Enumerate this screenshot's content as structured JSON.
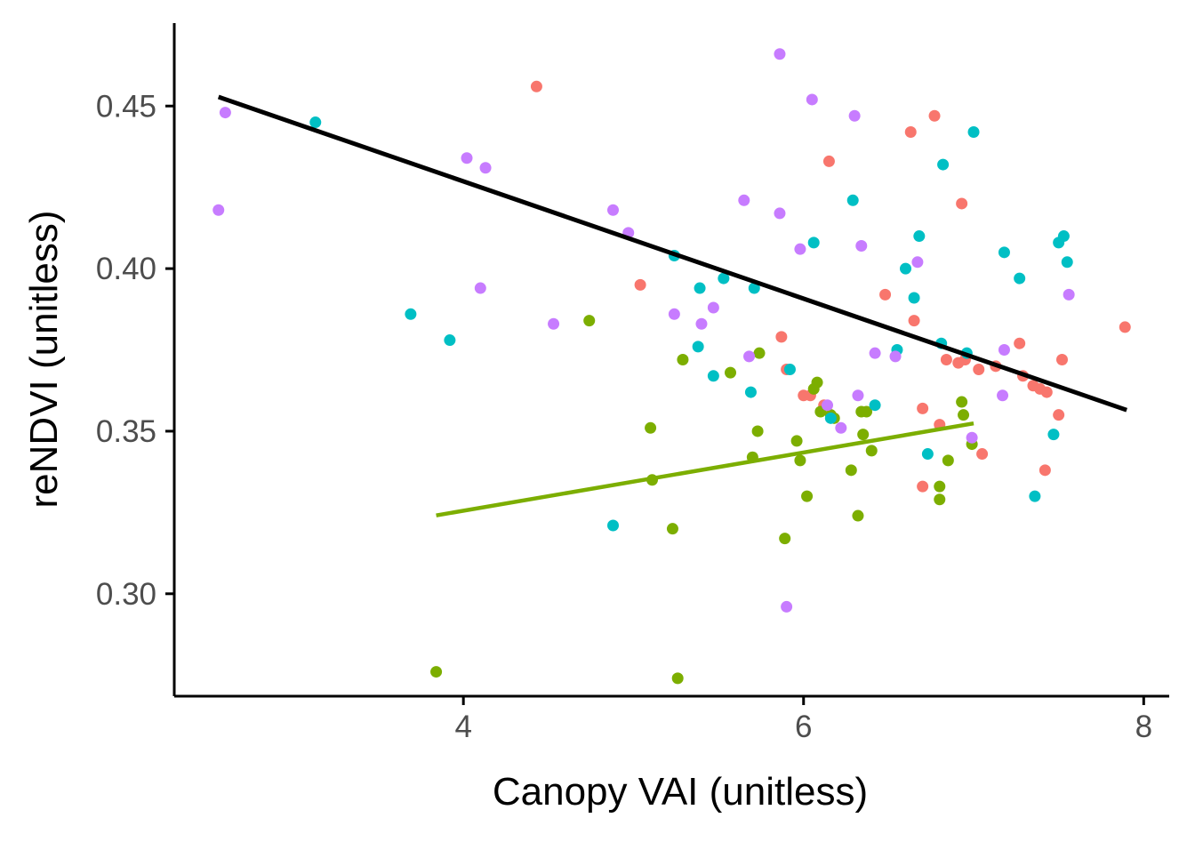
{
  "chart_data": {
    "type": "scatter",
    "title": "",
    "xlabel": "Canopy VAI (unitless)",
    "ylabel": "reNDVI (unitless)",
    "xlim": [
      2.3,
      8.15
    ],
    "ylim": [
      0.2685,
      0.4755
    ],
    "x_ticks": [
      4,
      6,
      8
    ],
    "x_tick_labels": [
      "4",
      "6",
      "8"
    ],
    "y_ticks": [
      0.3,
      0.35,
      0.4,
      0.45
    ],
    "y_tick_labels": [
      "0.30",
      "0.35",
      "0.40",
      "0.45"
    ],
    "grid": false,
    "legend": "none",
    "series": [
      {
        "color": "#F8766D",
        "points": [
          [
            4.43,
            0.456
          ],
          [
            5.04,
            0.395
          ],
          [
            5.87,
            0.379
          ],
          [
            5.9,
            0.369
          ],
          [
            6.0,
            0.361
          ],
          [
            6.04,
            0.361
          ],
          [
            6.12,
            0.358
          ],
          [
            6.15,
            0.433
          ],
          [
            6.48,
            0.392
          ],
          [
            6.63,
            0.442
          ],
          [
            6.65,
            0.384
          ],
          [
            6.7,
            0.357
          ],
          [
            6.7,
            0.333
          ],
          [
            6.77,
            0.447
          ],
          [
            6.8,
            0.352
          ],
          [
            6.84,
            0.372
          ],
          [
            6.91,
            0.371
          ],
          [
            6.93,
            0.42
          ],
          [
            6.95,
            0.372
          ],
          [
            7.03,
            0.369
          ],
          [
            7.05,
            0.343
          ],
          [
            7.13,
            0.37
          ],
          [
            7.27,
            0.377
          ],
          [
            7.29,
            0.367
          ],
          [
            7.35,
            0.364
          ],
          [
            7.39,
            0.363
          ],
          [
            7.42,
            0.338
          ],
          [
            7.43,
            0.362
          ],
          [
            7.5,
            0.355
          ],
          [
            7.52,
            0.372
          ],
          [
            7.89,
            0.382
          ]
        ]
      },
      {
        "color": "#7CAE00",
        "points": [
          [
            3.84,
            0.276
          ],
          [
            4.74,
            0.384
          ],
          [
            5.1,
            0.351
          ],
          [
            5.11,
            0.335
          ],
          [
            5.23,
            0.32
          ],
          [
            5.26,
            0.274
          ],
          [
            5.29,
            0.372
          ],
          [
            5.57,
            0.368
          ],
          [
            5.7,
            0.342
          ],
          [
            5.73,
            0.35
          ],
          [
            5.74,
            0.374
          ],
          [
            5.89,
            0.317
          ],
          [
            5.96,
            0.347
          ],
          [
            5.98,
            0.341
          ],
          [
            6.02,
            0.33
          ],
          [
            6.06,
            0.363
          ],
          [
            6.08,
            0.365
          ],
          [
            6.1,
            0.356
          ],
          [
            6.16,
            0.355
          ],
          [
            6.18,
            0.354
          ],
          [
            6.28,
            0.338
          ],
          [
            6.32,
            0.324
          ],
          [
            6.34,
            0.356
          ],
          [
            6.35,
            0.349
          ],
          [
            6.37,
            0.356
          ],
          [
            6.4,
            0.344
          ],
          [
            6.8,
            0.333
          ],
          [
            6.8,
            0.329
          ],
          [
            6.85,
            0.341
          ],
          [
            6.93,
            0.359
          ],
          [
            6.94,
            0.355
          ],
          [
            6.99,
            0.346
          ]
        ]
      },
      {
        "color": "#00BFC4",
        "points": [
          [
            3.13,
            0.445
          ],
          [
            3.69,
            0.386
          ],
          [
            3.92,
            0.378
          ],
          [
            4.88,
            0.321
          ],
          [
            5.24,
            0.404
          ],
          [
            5.38,
            0.376
          ],
          [
            5.39,
            0.394
          ],
          [
            5.47,
            0.367
          ],
          [
            5.53,
            0.397
          ],
          [
            5.69,
            0.362
          ],
          [
            5.71,
            0.394
          ],
          [
            5.92,
            0.369
          ],
          [
            6.06,
            0.408
          ],
          [
            6.16,
            0.354
          ],
          [
            6.29,
            0.421
          ],
          [
            6.42,
            0.358
          ],
          [
            6.55,
            0.375
          ],
          [
            6.6,
            0.4
          ],
          [
            6.65,
            0.391
          ],
          [
            6.68,
            0.41
          ],
          [
            6.73,
            0.343
          ],
          [
            6.81,
            0.377
          ],
          [
            6.82,
            0.432
          ],
          [
            6.96,
            0.374
          ],
          [
            7.0,
            0.442
          ],
          [
            7.18,
            0.405
          ],
          [
            7.27,
            0.397
          ],
          [
            7.36,
            0.33
          ],
          [
            7.47,
            0.349
          ],
          [
            7.5,
            0.408
          ],
          [
            7.53,
            0.41
          ],
          [
            7.55,
            0.402
          ]
        ]
      },
      {
        "color": "#C77CFF",
        "points": [
          [
            2.56,
            0.418
          ],
          [
            2.6,
            0.448
          ],
          [
            4.02,
            0.434
          ],
          [
            4.1,
            0.394
          ],
          [
            4.13,
            0.431
          ],
          [
            4.53,
            0.383
          ],
          [
            4.88,
            0.418
          ],
          [
            4.97,
            0.411
          ],
          [
            5.24,
            0.386
          ],
          [
            5.4,
            0.383
          ],
          [
            5.47,
            0.388
          ],
          [
            5.65,
            0.421
          ],
          [
            5.68,
            0.373
          ],
          [
            5.86,
            0.466
          ],
          [
            5.86,
            0.417
          ],
          [
            5.9,
            0.296
          ],
          [
            5.98,
            0.406
          ],
          [
            6.05,
            0.452
          ],
          [
            6.14,
            0.358
          ],
          [
            6.22,
            0.351
          ],
          [
            6.3,
            0.447
          ],
          [
            6.32,
            0.361
          ],
          [
            6.34,
            0.407
          ],
          [
            6.42,
            0.374
          ],
          [
            6.54,
            0.373
          ],
          [
            6.67,
            0.402
          ],
          [
            6.99,
            0.348
          ],
          [
            7.17,
            0.361
          ],
          [
            7.18,
            0.375
          ],
          [
            7.56,
            0.392
          ]
        ]
      }
    ],
    "trend_lines": [
      {
        "color": "#000000",
        "x": [
          2.56,
          7.9
        ],
        "y": [
          0.4528,
          0.3565
        ]
      },
      {
        "color": "#7CAE00",
        "x": [
          3.84,
          7.0
        ],
        "y": [
          0.3241,
          0.3524
        ]
      }
    ]
  }
}
